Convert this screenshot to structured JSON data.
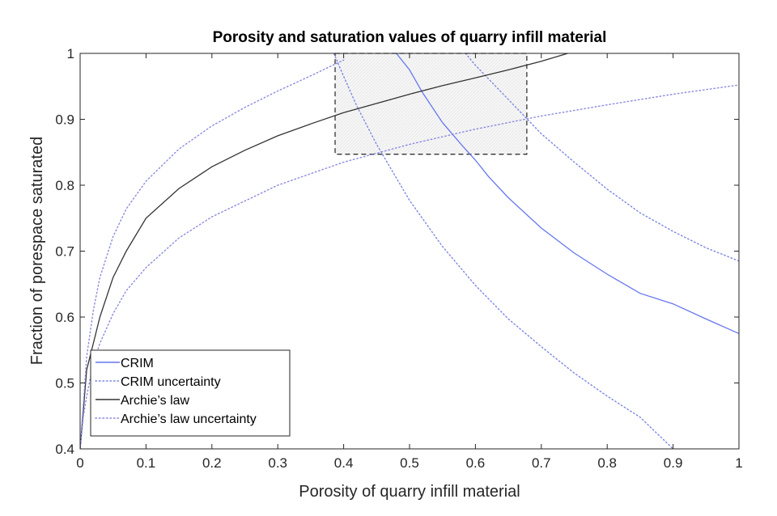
{
  "chart_data": {
    "type": "line",
    "title": "Porosity and saturation values of quarry infill material",
    "xlabel": "Porosity of quarry infill material",
    "ylabel": "Fraction of porespace saturated",
    "xlim": [
      0,
      1
    ],
    "ylim": [
      0.4,
      1
    ],
    "xticks": [
      0,
      0.1,
      0.2,
      0.3,
      0.4,
      0.5,
      0.6,
      0.7,
      0.8,
      0.9,
      1
    ],
    "xtick_labels": [
      "0",
      "0.1",
      "0.2",
      "0.3",
      "0.4",
      "0.5",
      "0.6",
      "0.7",
      "0.8",
      "0.9",
      "1"
    ],
    "yticks": [
      0.4,
      0.5,
      0.6,
      0.7,
      0.8,
      0.9,
      1
    ],
    "ytick_labels": [
      "0.4",
      "0.5",
      "0.6",
      "0.7",
      "0.8",
      "0.9",
      "1"
    ],
    "grid": false,
    "legend_position": "bottom-left",
    "series": [
      {
        "name": "CRIM",
        "color": "#6677ee",
        "style": "solid",
        "x": [
          0.48,
          0.5,
          0.52,
          0.55,
          0.58,
          0.6,
          0.62,
          0.65,
          0.7,
          0.75,
          0.8,
          0.85,
          0.9,
          0.95,
          1.0
        ],
        "y": [
          1.0,
          0.975,
          0.94,
          0.895,
          0.86,
          0.838,
          0.813,
          0.781,
          0.735,
          0.697,
          0.665,
          0.636,
          0.62,
          0.597,
          0.575
        ]
      },
      {
        "name": "CRIM uncertainty",
        "color": "#7b86e0",
        "style": "dotted",
        "x": [
          0.385,
          0.4,
          0.42,
          0.45,
          0.5,
          0.55,
          0.6,
          0.65,
          0.7,
          0.75,
          0.8,
          0.85,
          0.9
        ],
        "y": [
          1.0,
          0.965,
          0.92,
          0.862,
          0.777,
          0.707,
          0.648,
          0.597,
          0.555,
          0.515,
          0.48,
          0.448,
          0.4
        ]
      },
      {
        "name": "",
        "color": "#7b86e0",
        "style": "dotted",
        "x": [
          0.585,
          0.6,
          0.65,
          0.7,
          0.75,
          0.8,
          0.85,
          0.9,
          0.95,
          1.0
        ],
        "y": [
          1.0,
          0.982,
          0.93,
          0.878,
          0.835,
          0.794,
          0.758,
          0.73,
          0.705,
          0.685
        ]
      },
      {
        "name": "Archie's law",
        "color": "#333333",
        "style": "solid",
        "x": [
          0.0,
          0.005,
          0.01,
          0.02,
          0.03,
          0.05,
          0.07,
          0.1,
          0.15,
          0.2,
          0.25,
          0.3,
          0.35,
          0.4,
          0.45,
          0.5,
          0.55,
          0.6,
          0.65,
          0.7,
          0.74
        ],
        "y": [
          0.4,
          0.46,
          0.52,
          0.56,
          0.6,
          0.66,
          0.7,
          0.75,
          0.795,
          0.828,
          0.853,
          0.875,
          0.893,
          0.91,
          0.924,
          0.938,
          0.951,
          0.963,
          0.975,
          0.988,
          1.0
        ]
      },
      {
        "name": "Archie's law uncertainty",
        "color": "#8a8ae0",
        "style": "dotted",
        "x": [
          0.0,
          0.005,
          0.01,
          0.02,
          0.03,
          0.05,
          0.07,
          0.1,
          0.15,
          0.2,
          0.25,
          0.3,
          0.35,
          0.4
        ],
        "y": [
          0.4,
          0.47,
          0.54,
          0.61,
          0.66,
          0.722,
          0.764,
          0.806,
          0.855,
          0.89,
          0.918,
          0.943,
          0.966,
          0.99
        ]
      },
      {
        "name": "",
        "color": "#8a8ae0",
        "style": "dotted",
        "x": [
          0.0,
          0.005,
          0.01,
          0.02,
          0.03,
          0.05,
          0.07,
          0.1,
          0.15,
          0.2,
          0.3,
          0.4,
          0.5,
          0.6,
          0.7,
          0.8,
          0.9,
          1.0
        ],
        "y": [
          0.4,
          0.45,
          0.48,
          0.53,
          0.56,
          0.605,
          0.64,
          0.675,
          0.72,
          0.752,
          0.8,
          0.835,
          0.862,
          0.885,
          0.905,
          0.922,
          0.938,
          0.952
        ]
      }
    ],
    "box": {
      "x0": 0.387,
      "x1": 0.678,
      "y0": 0.847,
      "y1": 1.0,
      "style": "dashed"
    },
    "legend": [
      {
        "label": "CRIM",
        "color": "#6677ee",
        "style": "solid"
      },
      {
        "label": "CRIM uncertainty",
        "color": "#7b86e0",
        "style": "dotted"
      },
      {
        "label": "Archie’s law",
        "color": "#333333",
        "style": "solid"
      },
      {
        "label": "Archie’s law uncertainty",
        "color": "#8a8ae0",
        "style": "dotted"
      }
    ]
  }
}
